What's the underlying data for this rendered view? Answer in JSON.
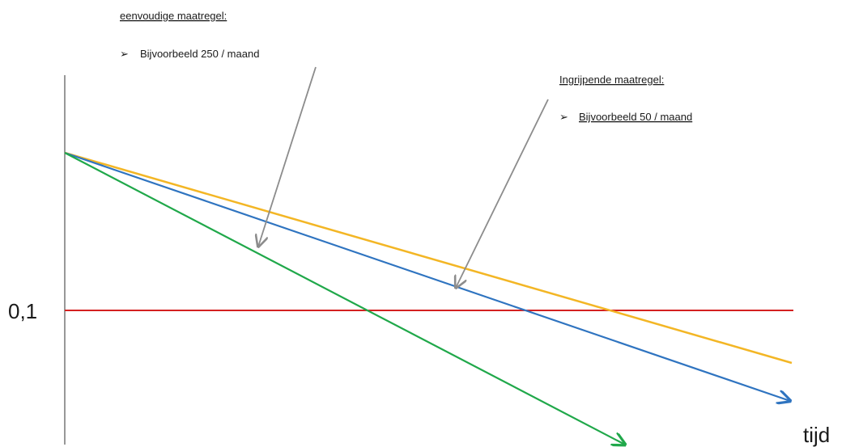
{
  "annotations": {
    "simple": {
      "heading": "eenvoudige maatregel:",
      "bullet_glyph": "➢",
      "bullet_text": "Bijvoorbeeld 250 / maand"
    },
    "drastic": {
      "heading": "Ingrijpende maatregel:",
      "bullet_glyph": "➢",
      "bullet_text": "Bijvoorbeeld 50 / maand"
    }
  },
  "axis": {
    "threshold_label": "0,1",
    "x_label": "tijd"
  },
  "colors": {
    "axis": "#777777",
    "threshold": "#d42020",
    "baseline_line": "#f3b625",
    "simple_line": "#2f74c0",
    "drastic_line": "#20a84a",
    "pointer": "#8c8c8c"
  }
}
